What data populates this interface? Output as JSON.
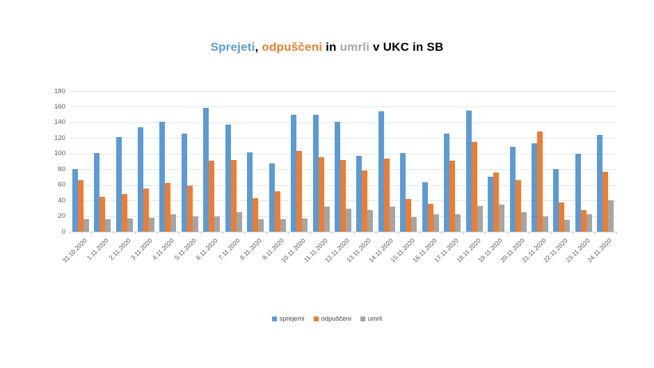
{
  "title": {
    "full": "Sprejeti, odpuščeni in umrli v UKC in SB",
    "parts": [
      {
        "text": "Sprejeti",
        "color": "#5b9bd5"
      },
      {
        "text": ", ",
        "color": "#000000"
      },
      {
        "text": "odpuščeni",
        "color": "#ed7d31"
      },
      {
        "text": " in ",
        "color": "#000000"
      },
      {
        "text": "umrli",
        "color": "#a6a6a6"
      },
      {
        "text": " v UKC in SB",
        "color": "#000000"
      }
    ]
  },
  "chart_data": {
    "type": "bar",
    "title": "Sprejeti, odpuščeni in umrli v UKC in SB",
    "categories": [
      "31.10.2020",
      "1.11.2020",
      "2.11.2020",
      "3.11.2020",
      "4.11.2020",
      "5.11.2020",
      "6.11.2020",
      "7.11.2020",
      "8.11.2020",
      "9.11.2020",
      "10.11.2020",
      "11.11.2020",
      "12.11.2020",
      "13.11.2020",
      "14.11.2020",
      "15.11.2020",
      "16.11.2020",
      "17.11.2020",
      "18.11.2020",
      "19.11.2020",
      "20.11.2020",
      "21.11.2020",
      "22.11.2020",
      "23.11.2020",
      "24.11.2020"
    ],
    "series": [
      {
        "name": "sprejemi",
        "color": "#5b9bd5",
        "values": [
          80,
          101,
          121,
          134,
          141,
          126,
          159,
          137,
          102,
          87,
          150,
          150,
          141,
          97,
          154,
          101,
          63,
          126,
          155,
          70,
          109,
          113,
          80,
          100,
          124
        ]
      },
      {
        "name": "odpuščeni",
        "color": "#ed7d31",
        "values": [
          66,
          45,
          48,
          55,
          62,
          59,
          91,
          92,
          43,
          52,
          103,
          95,
          92,
          78,
          94,
          42,
          36,
          91,
          115,
          76,
          66,
          128,
          37,
          28,
          77
        ]
      },
      {
        "name": "umrli",
        "color": "#a5a5a5",
        "values": [
          16,
          16,
          17,
          18,
          22,
          20,
          20,
          25,
          16,
          16,
          17,
          32,
          29,
          28,
          32,
          19,
          22,
          22,
          33,
          35,
          25,
          20,
          15,
          22,
          40
        ]
      }
    ],
    "xlabel": "",
    "ylabel": "",
    "ylim": [
      0,
      180
    ],
    "ytick_step": 20,
    "grid": true,
    "legend_position": "bottom"
  }
}
